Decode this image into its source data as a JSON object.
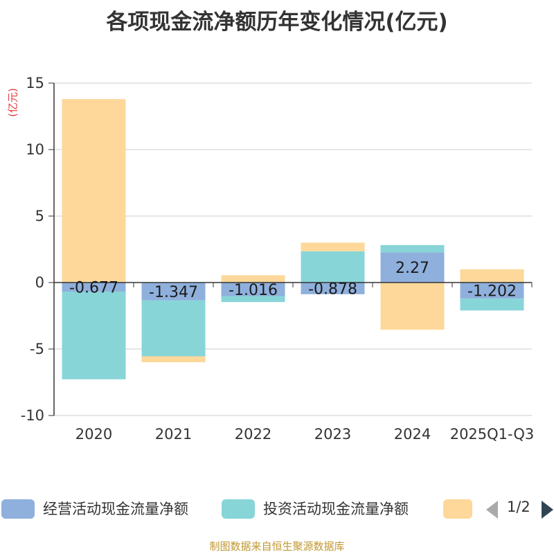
{
  "title": "各项现金流净额历年变化情况(亿元)",
  "unit_label": "(亿元)",
  "colors": {
    "operating": "#8fb0dc",
    "investing": "#88d5d8",
    "financing": "#fdd89a",
    "axis": "#333333",
    "grid": "#cccccc",
    "unit": "#e4393c",
    "footer": "#c0962f",
    "pager_prev": "#aaaaaa",
    "pager_next": "#2f4554"
  },
  "chart_data": {
    "type": "bar",
    "stacked": true,
    "title": "各项现金流净额历年变化情况(亿元)",
    "ylabel": "(亿元)",
    "ylim": [
      -10,
      15
    ],
    "yticks": [
      15,
      10,
      5,
      0,
      -5,
      -10
    ],
    "grid": true,
    "categories": [
      "2020",
      "2021",
      "2022",
      "2023",
      "2024",
      "2025Q1-Q3"
    ],
    "series": [
      {
        "name": "经营活动现金流量净额",
        "color": "#8fb0dc",
        "values": [
          -0.677,
          -1.347,
          -1.016,
          -0.878,
          2.27,
          -1.202
        ],
        "labels": [
          "-0.677",
          "-1.347",
          "-1.016",
          "-0.878",
          "2.27",
          "-1.202"
        ]
      },
      {
        "name": "投资活动现金流量净额",
        "color": "#88d5d8",
        "values": [
          -6.6,
          -4.2,
          -0.45,
          2.35,
          0.55,
          -0.9
        ]
      },
      {
        "name": "",
        "color": "#fdd89a",
        "values": [
          13.8,
          -0.45,
          0.55,
          0.65,
          -3.55,
          1.0
        ]
      }
    ]
  },
  "legend": {
    "items": [
      {
        "label": "经营活动现金流量净额",
        "color": "#8fb0dc"
      },
      {
        "label": "投资活动现金流量净额",
        "color": "#88d5d8"
      },
      {
        "label": "",
        "color": "#fdd89a"
      }
    ],
    "page_text": "1/2"
  },
  "footer": "制图数据来自恒生聚源数据库"
}
